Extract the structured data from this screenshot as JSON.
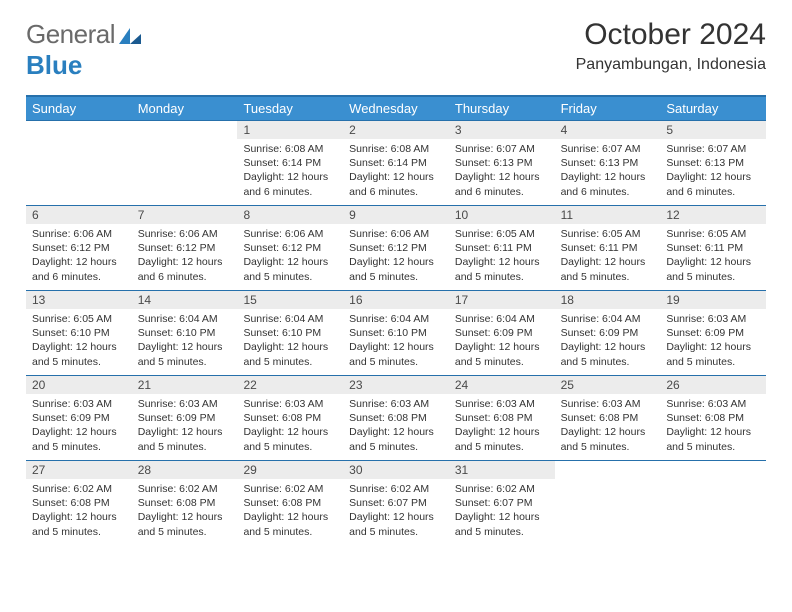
{
  "logo": {
    "text_general": "General",
    "text_blue": "Blue"
  },
  "title": "October 2024",
  "subtitle": "Panyambungan, Indonesia",
  "colors": {
    "header_bar": "#3a8fd0",
    "border": "#2670ab",
    "daynum_bg": "#ececec",
    "text": "#333333",
    "logo_gray": "#6a6a6a",
    "logo_blue": "#2a7fbf",
    "background": "#ffffff"
  },
  "day_headers": [
    "Sunday",
    "Monday",
    "Tuesday",
    "Wednesday",
    "Thursday",
    "Friday",
    "Saturday"
  ],
  "weeks": [
    [
      {
        "empty": true
      },
      {
        "empty": true
      },
      {
        "day": "1",
        "sunrise": "Sunrise: 6:08 AM",
        "sunset": "Sunset: 6:14 PM",
        "daylight": "Daylight: 12 hours and 6 minutes."
      },
      {
        "day": "2",
        "sunrise": "Sunrise: 6:08 AM",
        "sunset": "Sunset: 6:14 PM",
        "daylight": "Daylight: 12 hours and 6 minutes."
      },
      {
        "day": "3",
        "sunrise": "Sunrise: 6:07 AM",
        "sunset": "Sunset: 6:13 PM",
        "daylight": "Daylight: 12 hours and 6 minutes."
      },
      {
        "day": "4",
        "sunrise": "Sunrise: 6:07 AM",
        "sunset": "Sunset: 6:13 PM",
        "daylight": "Daylight: 12 hours and 6 minutes."
      },
      {
        "day": "5",
        "sunrise": "Sunrise: 6:07 AM",
        "sunset": "Sunset: 6:13 PM",
        "daylight": "Daylight: 12 hours and 6 minutes."
      }
    ],
    [
      {
        "day": "6",
        "sunrise": "Sunrise: 6:06 AM",
        "sunset": "Sunset: 6:12 PM",
        "daylight": "Daylight: 12 hours and 6 minutes."
      },
      {
        "day": "7",
        "sunrise": "Sunrise: 6:06 AM",
        "sunset": "Sunset: 6:12 PM",
        "daylight": "Daylight: 12 hours and 6 minutes."
      },
      {
        "day": "8",
        "sunrise": "Sunrise: 6:06 AM",
        "sunset": "Sunset: 6:12 PM",
        "daylight": "Daylight: 12 hours and 5 minutes."
      },
      {
        "day": "9",
        "sunrise": "Sunrise: 6:06 AM",
        "sunset": "Sunset: 6:12 PM",
        "daylight": "Daylight: 12 hours and 5 minutes."
      },
      {
        "day": "10",
        "sunrise": "Sunrise: 6:05 AM",
        "sunset": "Sunset: 6:11 PM",
        "daylight": "Daylight: 12 hours and 5 minutes."
      },
      {
        "day": "11",
        "sunrise": "Sunrise: 6:05 AM",
        "sunset": "Sunset: 6:11 PM",
        "daylight": "Daylight: 12 hours and 5 minutes."
      },
      {
        "day": "12",
        "sunrise": "Sunrise: 6:05 AM",
        "sunset": "Sunset: 6:11 PM",
        "daylight": "Daylight: 12 hours and 5 minutes."
      }
    ],
    [
      {
        "day": "13",
        "sunrise": "Sunrise: 6:05 AM",
        "sunset": "Sunset: 6:10 PM",
        "daylight": "Daylight: 12 hours and 5 minutes."
      },
      {
        "day": "14",
        "sunrise": "Sunrise: 6:04 AM",
        "sunset": "Sunset: 6:10 PM",
        "daylight": "Daylight: 12 hours and 5 minutes."
      },
      {
        "day": "15",
        "sunrise": "Sunrise: 6:04 AM",
        "sunset": "Sunset: 6:10 PM",
        "daylight": "Daylight: 12 hours and 5 minutes."
      },
      {
        "day": "16",
        "sunrise": "Sunrise: 6:04 AM",
        "sunset": "Sunset: 6:10 PM",
        "daylight": "Daylight: 12 hours and 5 minutes."
      },
      {
        "day": "17",
        "sunrise": "Sunrise: 6:04 AM",
        "sunset": "Sunset: 6:09 PM",
        "daylight": "Daylight: 12 hours and 5 minutes."
      },
      {
        "day": "18",
        "sunrise": "Sunrise: 6:04 AM",
        "sunset": "Sunset: 6:09 PM",
        "daylight": "Daylight: 12 hours and 5 minutes."
      },
      {
        "day": "19",
        "sunrise": "Sunrise: 6:03 AM",
        "sunset": "Sunset: 6:09 PM",
        "daylight": "Daylight: 12 hours and 5 minutes."
      }
    ],
    [
      {
        "day": "20",
        "sunrise": "Sunrise: 6:03 AM",
        "sunset": "Sunset: 6:09 PM",
        "daylight": "Daylight: 12 hours and 5 minutes."
      },
      {
        "day": "21",
        "sunrise": "Sunrise: 6:03 AM",
        "sunset": "Sunset: 6:09 PM",
        "daylight": "Daylight: 12 hours and 5 minutes."
      },
      {
        "day": "22",
        "sunrise": "Sunrise: 6:03 AM",
        "sunset": "Sunset: 6:08 PM",
        "daylight": "Daylight: 12 hours and 5 minutes."
      },
      {
        "day": "23",
        "sunrise": "Sunrise: 6:03 AM",
        "sunset": "Sunset: 6:08 PM",
        "daylight": "Daylight: 12 hours and 5 minutes."
      },
      {
        "day": "24",
        "sunrise": "Sunrise: 6:03 AM",
        "sunset": "Sunset: 6:08 PM",
        "daylight": "Daylight: 12 hours and 5 minutes."
      },
      {
        "day": "25",
        "sunrise": "Sunrise: 6:03 AM",
        "sunset": "Sunset: 6:08 PM",
        "daylight": "Daylight: 12 hours and 5 minutes."
      },
      {
        "day": "26",
        "sunrise": "Sunrise: 6:03 AM",
        "sunset": "Sunset: 6:08 PM",
        "daylight": "Daylight: 12 hours and 5 minutes."
      }
    ],
    [
      {
        "day": "27",
        "sunrise": "Sunrise: 6:02 AM",
        "sunset": "Sunset: 6:08 PM",
        "daylight": "Daylight: 12 hours and 5 minutes."
      },
      {
        "day": "28",
        "sunrise": "Sunrise: 6:02 AM",
        "sunset": "Sunset: 6:08 PM",
        "daylight": "Daylight: 12 hours and 5 minutes."
      },
      {
        "day": "29",
        "sunrise": "Sunrise: 6:02 AM",
        "sunset": "Sunset: 6:08 PM",
        "daylight": "Daylight: 12 hours and 5 minutes."
      },
      {
        "day": "30",
        "sunrise": "Sunrise: 6:02 AM",
        "sunset": "Sunset: 6:07 PM",
        "daylight": "Daylight: 12 hours and 5 minutes."
      },
      {
        "day": "31",
        "sunrise": "Sunrise: 6:02 AM",
        "sunset": "Sunset: 6:07 PM",
        "daylight": "Daylight: 12 hours and 5 minutes."
      },
      {
        "empty": true
      },
      {
        "empty": true
      }
    ]
  ]
}
